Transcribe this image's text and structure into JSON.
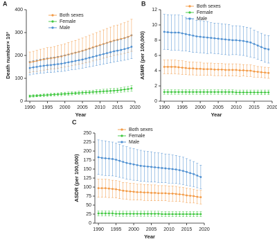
{
  "chart_data": [
    {
      "type": "line",
      "label": "A",
      "x_label": "Year",
      "y_label": "Death number× 10³",
      "x": [
        1990,
        1991,
        1992,
        1993,
        1994,
        1995,
        1996,
        1997,
        1998,
        1999,
        2000,
        2001,
        2002,
        2003,
        2004,
        2005,
        2006,
        2007,
        2008,
        2009,
        2010,
        2011,
        2012,
        2013,
        2014,
        2015,
        2016,
        2017,
        2018,
        2019
      ],
      "xlim": [
        1989,
        2020
      ],
      "xticks": [
        1990,
        1995,
        2000,
        2005,
        2010,
        2015,
        2020
      ],
      "ylim": [
        0,
        400
      ],
      "yticks": [
        0,
        100,
        200,
        300,
        400
      ],
      "series": [
        {
          "name": "Both sexes",
          "color": "#f39a45",
          "values": [
            170,
            173,
            176,
            180,
            183,
            186,
            188,
            190,
            193,
            196,
            200,
            204,
            208,
            212,
            216,
            220,
            225,
            230,
            235,
            240,
            245,
            250,
            255,
            260,
            265,
            268,
            272,
            276,
            281,
            288
          ],
          "errors": [
            45,
            45,
            46,
            47,
            47,
            48,
            48,
            49,
            50,
            50,
            51,
            52,
            53,
            54,
            55,
            56,
            57,
            58,
            59,
            60,
            61,
            62,
            63,
            64,
            65,
            65,
            66,
            67,
            68,
            70
          ]
        },
        {
          "name": "Female",
          "color": "#3ec73e",
          "values": [
            22,
            23,
            24,
            25,
            26,
            27,
            28,
            29,
            30,
            31,
            32,
            33,
            34,
            35,
            36,
            37,
            38,
            39,
            40,
            41,
            42,
            43,
            44,
            45,
            46,
            47,
            49,
            51,
            53,
            56
          ],
          "errors": [
            5,
            5,
            5,
            5,
            6,
            6,
            6,
            6,
            6,
            7,
            7,
            7,
            7,
            7,
            8,
            8,
            8,
            8,
            8,
            9,
            9,
            9,
            9,
            10,
            10,
            10,
            10,
            11,
            11,
            12
          ]
        },
        {
          "name": "Male",
          "color": "#4d8fd1",
          "values": [
            145,
            148,
            150,
            153,
            155,
            157,
            158,
            160,
            162,
            164,
            167,
            170,
            173,
            176,
            179,
            182,
            186,
            190,
            194,
            198,
            202,
            206,
            210,
            214,
            218,
            221,
            224,
            228,
            232,
            238
          ],
          "errors": [
            30,
            30,
            31,
            31,
            32,
            32,
            33,
            33,
            34,
            34,
            35,
            35,
            36,
            37,
            37,
            38,
            39,
            40,
            41,
            42,
            43,
            44,
            45,
            46,
            47,
            47,
            48,
            49,
            50,
            52
          ]
        }
      ]
    },
    {
      "type": "line",
      "label": "B",
      "x_label": "Year",
      "y_label": "ASMR (per 100,000)",
      "x": [
        1990,
        1991,
        1992,
        1993,
        1994,
        1995,
        1996,
        1997,
        1998,
        1999,
        2000,
        2001,
        2002,
        2003,
        2004,
        2005,
        2006,
        2007,
        2008,
        2009,
        2010,
        2011,
        2012,
        2013,
        2014,
        2015,
        2016,
        2017,
        2018,
        2019
      ],
      "xlim": [
        1989,
        2020
      ],
      "xticks": [
        1990,
        1995,
        2000,
        2005,
        2010,
        2015,
        2020
      ],
      "ylim": [
        0,
        12
      ],
      "yticks": [
        0,
        2,
        4,
        6,
        8,
        10,
        12
      ],
      "series": [
        {
          "name": "Both sexes",
          "color": "#f39a45",
          "values": [
            4.5,
            4.5,
            4.5,
            4.5,
            4.45,
            4.4,
            4.35,
            4.3,
            4.3,
            4.25,
            4.25,
            4.2,
            4.2,
            4.2,
            4.15,
            4.15,
            4.15,
            4.1,
            4.1,
            4.1,
            4.1,
            4.05,
            4.05,
            4,
            4,
            3.9,
            3.85,
            3.8,
            3.75,
            3.7
          ],
          "errors": [
            0.9,
            0.9,
            0.9,
            0.9,
            0.9,
            0.9,
            0.85,
            0.85,
            0.85,
            0.85,
            0.85,
            0.8,
            0.8,
            0.8,
            0.8,
            0.8,
            0.8,
            0.8,
            0.8,
            0.8,
            0.8,
            0.8,
            0.75,
            0.75,
            0.75,
            0.75,
            0.7,
            0.7,
            0.7,
            0.7
          ]
        },
        {
          "name": "Female",
          "color": "#3ec73e",
          "values": [
            1.2,
            1.2,
            1.2,
            1.2,
            1.2,
            1.2,
            1.2,
            1.2,
            1.2,
            1.2,
            1.2,
            1.2,
            1.2,
            1.2,
            1.2,
            1.2,
            1.2,
            1.2,
            1.2,
            1.2,
            1.15,
            1.15,
            1.15,
            1.15,
            1.15,
            1.15,
            1.15,
            1.15,
            1.15,
            1.15
          ],
          "errors": [
            0.3,
            0.3,
            0.3,
            0.3,
            0.3,
            0.3,
            0.3,
            0.3,
            0.3,
            0.3,
            0.3,
            0.3,
            0.3,
            0.3,
            0.3,
            0.3,
            0.3,
            0.3,
            0.3,
            0.3,
            0.3,
            0.3,
            0.3,
            0.3,
            0.3,
            0.3,
            0.3,
            0.3,
            0.3,
            0.3
          ]
        },
        {
          "name": "Male",
          "color": "#4d8fd1",
          "values": [
            9.1,
            9.05,
            9,
            9,
            9,
            8.9,
            8.8,
            8.7,
            8.6,
            8.5,
            8.45,
            8.4,
            8.35,
            8.3,
            8.25,
            8.2,
            8.15,
            8.1,
            8.05,
            8,
            8,
            7.95,
            7.9,
            7.8,
            7.7,
            7.5,
            7.3,
            7.1,
            6.9,
            6.8
          ],
          "errors": [
            2.3,
            2.3,
            2.3,
            2.3,
            2.3,
            2.3,
            2.2,
            2.2,
            2.2,
            2.1,
            2.1,
            2.1,
            2.1,
            2,
            2,
            2,
            2,
            2,
            2,
            1.9,
            1.9,
            1.9,
            1.9,
            1.9,
            1.9,
            1.8,
            1.8,
            1.8,
            1.8,
            1.8
          ]
        }
      ]
    },
    {
      "type": "line",
      "label": "C",
      "x_label": "Year",
      "y_label": "ASDR (per 100,000)",
      "x": [
        1990,
        1991,
        1992,
        1993,
        1994,
        1995,
        1996,
        1997,
        1998,
        1999,
        2000,
        2001,
        2002,
        2003,
        2004,
        2005,
        2006,
        2007,
        2008,
        2009,
        2010,
        2011,
        2012,
        2013,
        2014,
        2015,
        2016,
        2017,
        2018,
        2019
      ],
      "xlim": [
        1989,
        2020
      ],
      "xticks": [
        1990,
        1995,
        2000,
        2005,
        2010,
        2015,
        2020
      ],
      "ylim": [
        0,
        250
      ],
      "yticks": [
        0,
        25,
        50,
        75,
        100,
        125,
        150,
        175,
        200,
        225,
        250
      ],
      "series": [
        {
          "name": "Both sexes",
          "color": "#f39a45",
          "values": [
            97,
            97,
            97,
            96,
            95,
            94,
            92,
            90,
            89,
            88,
            87,
            86,
            86,
            85,
            85,
            84,
            84,
            83,
            83,
            83,
            82,
            82,
            81,
            80,
            79,
            77,
            76,
            75,
            73,
            72
          ],
          "errors": [
            25,
            25,
            25,
            25,
            24,
            24,
            24,
            23,
            23,
            23,
            23,
            22,
            22,
            22,
            22,
            22,
            22,
            21,
            21,
            21,
            21,
            21,
            21,
            20,
            20,
            20,
            20,
            19,
            19,
            19
          ]
        },
        {
          "name": "Female",
          "color": "#3ec73e",
          "values": [
            27,
            27,
            27,
            27,
            27,
            26,
            26,
            26,
            26,
            26,
            26,
            26,
            26,
            26,
            26,
            26,
            26,
            26,
            25,
            25,
            25,
            25,
            25,
            25,
            25,
            25,
            25,
            25,
            25,
            25
          ],
          "errors": [
            7,
            7,
            7,
            7,
            7,
            7,
            7,
            7,
            7,
            7,
            7,
            7,
            7,
            7,
            7,
            7,
            7,
            7,
            7,
            7,
            7,
            7,
            7,
            7,
            7,
            7,
            7,
            7,
            7,
            7
          ]
        },
        {
          "name": "Male",
          "color": "#4d8fd1",
          "values": [
            183,
            181,
            180,
            179,
            178,
            176,
            173,
            170,
            167,
            165,
            163,
            161,
            159,
            158,
            157,
            156,
            155,
            154,
            153,
            152,
            151,
            150,
            149,
            147,
            145,
            142,
            139,
            136,
            132,
            128
          ],
          "errors": [
            48,
            48,
            48,
            47,
            47,
            46,
            46,
            45,
            45,
            44,
            44,
            43,
            43,
            42,
            42,
            42,
            41,
            41,
            41,
            40,
            40,
            39,
            39,
            38,
            38,
            37,
            36,
            35,
            34,
            33
          ]
        }
      ]
    }
  ]
}
